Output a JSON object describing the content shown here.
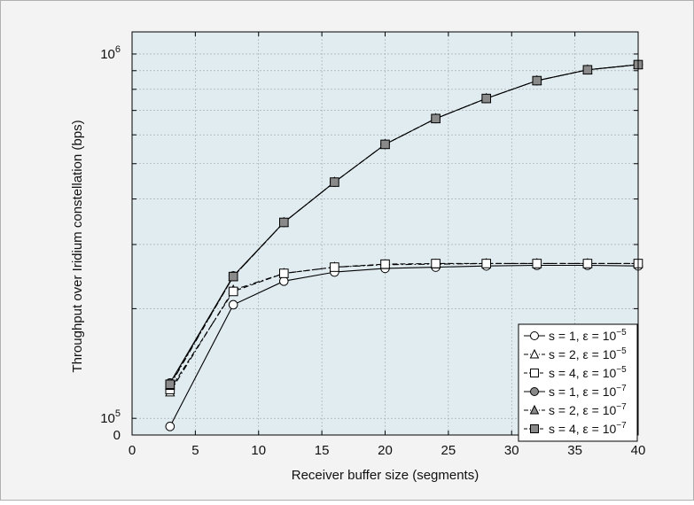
{
  "chart_data": {
    "type": "line",
    "xlabel": "Receiver buffer size (segments)",
    "ylabel": "Throughput over Iridium constellation (bps)",
    "xlim": [
      0,
      40
    ],
    "ylim": [
      90000,
      1150000
    ],
    "y_scale": "log",
    "grid": true,
    "legend_position": "bottom-right",
    "x_ticks": [
      0,
      5,
      10,
      15,
      20,
      25,
      30,
      35,
      40
    ],
    "y_tick_labels": [
      {
        "value": 1000000,
        "base": "10",
        "exp": "6"
      },
      {
        "value": 100000,
        "base": "10",
        "exp": "5"
      },
      {
        "value": 90000,
        "base": "0",
        "exp": ""
      }
    ],
    "colors": {
      "background": "#e1ecf1",
      "frame": "#f3f3f3",
      "line": "#000000",
      "marker_fill": "#ffffff",
      "marker_fill_shaded": "#8a8a8a"
    },
    "series": [
      {
        "name": "s = 1, ε = 10",
        "exp": "−5",
        "marker": "circle",
        "fill": "open",
        "dash": "solid",
        "x": [
          3,
          8,
          12,
          16,
          20,
          24,
          28,
          32,
          36,
          40
        ],
        "y": [
          95000,
          205000,
          238000,
          252000,
          258000,
          260000,
          262000,
          263000,
          263000,
          262000
        ]
      },
      {
        "name": "s = 2, ε = 10",
        "exp": "−5",
        "marker": "triangle",
        "fill": "open",
        "dash": "dashdot",
        "x": [
          3,
          8,
          12,
          16,
          20,
          24,
          28,
          32,
          36,
          40
        ],
        "y": [
          118000,
          225000,
          250000,
          260000,
          264000,
          265000,
          266000,
          266000,
          266000,
          266000
        ]
      },
      {
        "name": "s = 4, ε = 10",
        "exp": "−5",
        "marker": "square",
        "fill": "open",
        "dash": "dashed",
        "x": [
          3,
          8,
          12,
          16,
          20,
          24,
          28,
          32,
          36,
          40
        ],
        "y": [
          120000,
          223000,
          250000,
          260000,
          265000,
          266000,
          266000,
          266000,
          266000,
          266000
        ]
      },
      {
        "name": "s = 1, ε = 10",
        "exp": "−7",
        "marker": "circle",
        "fill": "shaded",
        "dash": "solid",
        "x": [
          3,
          8,
          12,
          16,
          20,
          24,
          28,
          32,
          36,
          40
        ],
        "y": [
          125000,
          246000,
          345000,
          445000,
          565000,
          665000,
          755000,
          845000,
          905000,
          935000
        ]
      },
      {
        "name": "s = 2, ε = 10",
        "exp": "−7",
        "marker": "triangle",
        "fill": "shaded",
        "dash": "dashdot",
        "x": [
          3,
          8,
          12,
          16,
          20,
          24,
          28,
          32,
          36,
          40
        ],
        "y": [
          123000,
          245000,
          345000,
          445000,
          565000,
          665000,
          755000,
          845000,
          905000,
          935000
        ]
      },
      {
        "name": "s = 4, ε = 10",
        "exp": "−7",
        "marker": "square",
        "fill": "shaded",
        "dash": "dashed",
        "x": [
          3,
          8,
          12,
          16,
          20,
          24,
          28,
          32,
          36,
          40
        ],
        "y": [
          124000,
          245000,
          345000,
          445000,
          565000,
          665000,
          755000,
          845000,
          905000,
          935000
        ]
      }
    ]
  }
}
